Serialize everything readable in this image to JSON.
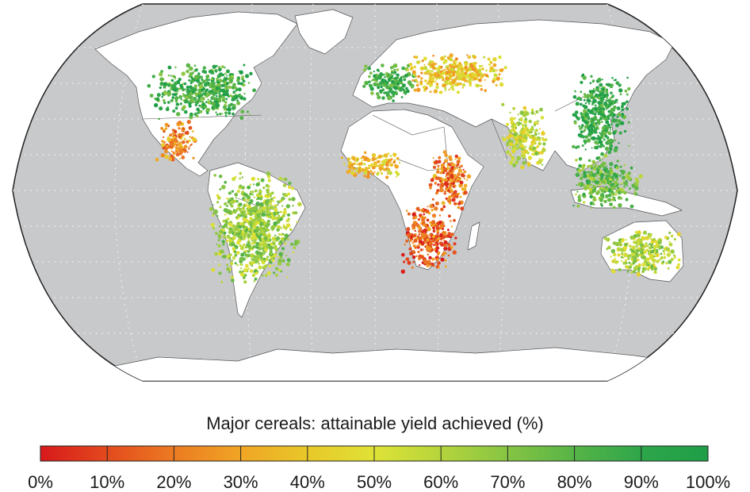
{
  "map": {
    "projection": "Robinson (world)",
    "ocean_color": "#c8c9cb",
    "land_no_data_color": "#ffffff",
    "graticule": "dotted",
    "graticule_color": "#ffffff",
    "border_color": "#555555"
  },
  "legend": {
    "title": "Major cereals: attainable yield achieved (%)",
    "ticks": [
      "0%",
      "10%",
      "20%",
      "30%",
      "40%",
      "50%",
      "60%",
      "70%",
      "80%",
      "90%",
      "100%"
    ],
    "colors": [
      "#d7191c",
      "#e34a1d",
      "#ec7b22",
      "#f0a524",
      "#e8c829",
      "#dfe236",
      "#b5d53c",
      "#86c443",
      "#56b447",
      "#2ea64a",
      "#1f9e48"
    ]
  },
  "regions": [
    {
      "name": "north-america",
      "level": 0.85
    },
    {
      "name": "mexico-central-america",
      "level": 0.25
    },
    {
      "name": "south-america",
      "level": 0.65
    },
    {
      "name": "europe",
      "level": 0.85
    },
    {
      "name": "eastern-europe",
      "level": 0.4
    },
    {
      "name": "west-africa",
      "level": 0.4
    },
    {
      "name": "east-africa",
      "level": 0.2
    },
    {
      "name": "southern-africa",
      "level": 0.15
    },
    {
      "name": "south-asia",
      "level": 0.55
    },
    {
      "name": "china",
      "level": 0.9
    },
    {
      "name": "southeast-asia",
      "level": 0.75
    },
    {
      "name": "australia",
      "level": 0.6
    }
  ]
}
